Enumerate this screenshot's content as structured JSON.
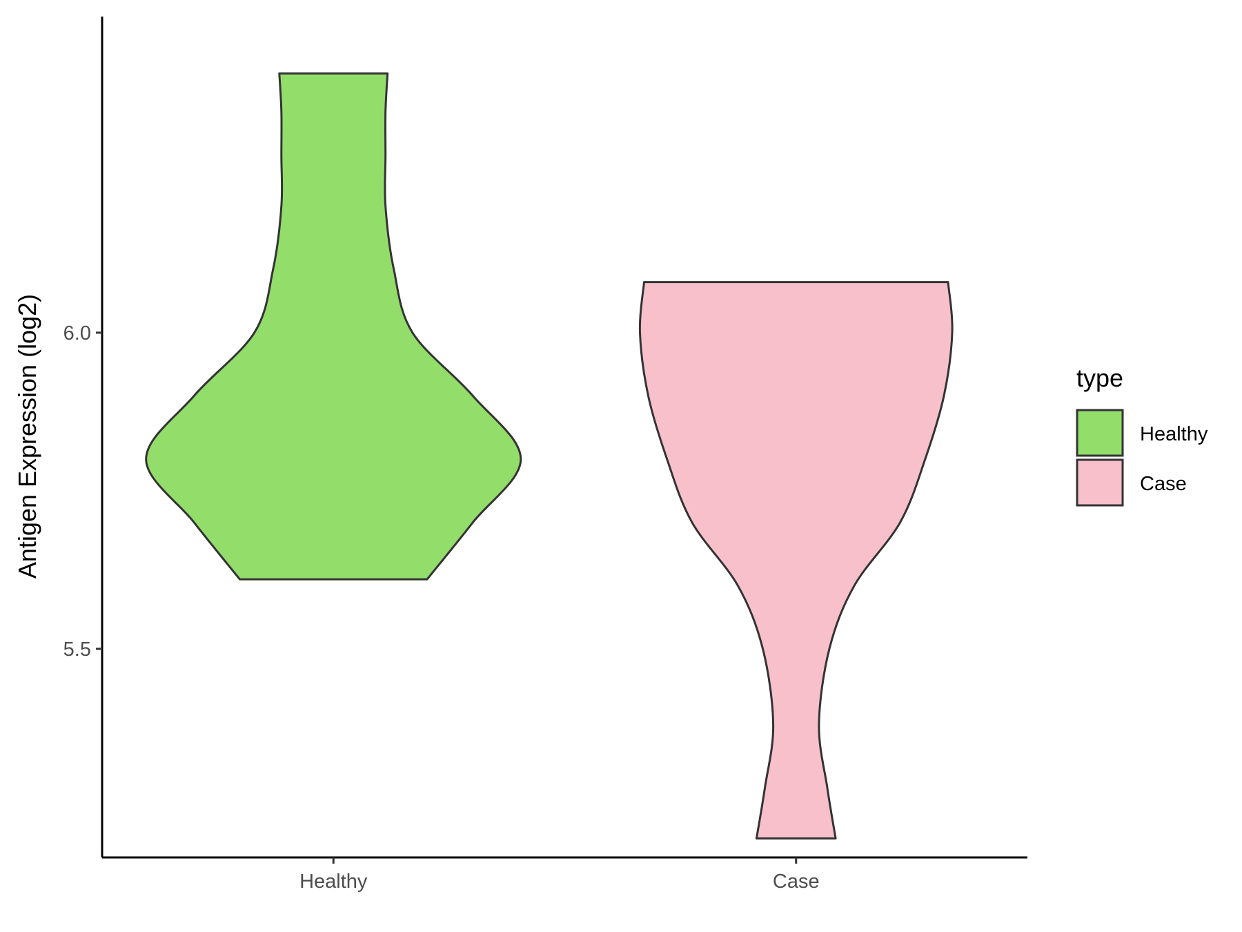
{
  "chart_data": {
    "type": "violin",
    "title": "",
    "xlabel": "",
    "ylabel": "Antigen Expression (log2)",
    "ylim": [
      5.17,
      6.5
    ],
    "y_ticks": [
      5.5,
      6.0
    ],
    "y_tick_labels": [
      "5.5",
      "6.0"
    ],
    "categories": [
      "Healthy",
      "Case"
    ],
    "grid": false,
    "legend": {
      "title": "type",
      "position": "right",
      "entries": [
        {
          "label": "Healthy",
          "color": "#93DD6A"
        },
        {
          "label": "Case",
          "color": "#F7C0CB"
        }
      ]
    },
    "series": [
      {
        "name": "Healthy",
        "color": "#93DD6A",
        "min": 5.61,
        "max": 6.41,
        "density": [
          {
            "y": 5.61,
            "w": 0.45
          },
          {
            "y": 5.7,
            "w": 0.67
          },
          {
            "y": 5.8,
            "w": 0.9
          },
          {
            "y": 5.9,
            "w": 0.67
          },
          {
            "y": 6.0,
            "w": 0.38
          },
          {
            "y": 6.1,
            "w": 0.29
          },
          {
            "y": 6.2,
            "w": 0.25
          },
          {
            "y": 6.28,
            "w": 0.25
          },
          {
            "y": 6.35,
            "w": 0.25
          },
          {
            "y": 6.41,
            "w": 0.26
          }
        ]
      },
      {
        "name": "Case",
        "color": "#F7C0CB",
        "min": 5.2,
        "max": 6.08,
        "density": [
          {
            "y": 5.2,
            "w": 0.19
          },
          {
            "y": 5.28,
            "w": 0.15
          },
          {
            "y": 5.38,
            "w": 0.11
          },
          {
            "y": 5.5,
            "w": 0.16
          },
          {
            "y": 5.6,
            "w": 0.28
          },
          {
            "y": 5.7,
            "w": 0.5
          },
          {
            "y": 5.8,
            "w": 0.62
          },
          {
            "y": 5.9,
            "w": 0.71
          },
          {
            "y": 6.0,
            "w": 0.75
          },
          {
            "y": 6.08,
            "w": 0.73
          }
        ]
      }
    ]
  }
}
